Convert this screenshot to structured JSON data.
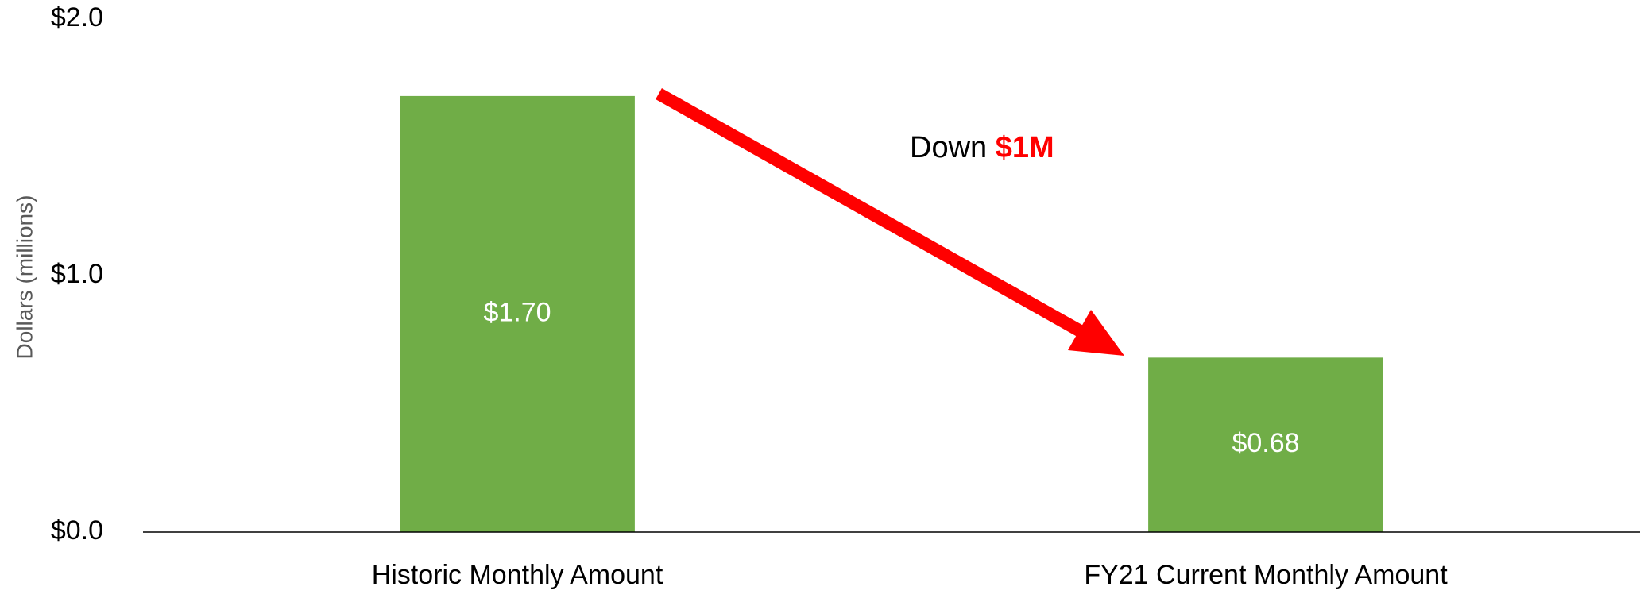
{
  "chart_data": {
    "type": "bar",
    "y_label": "Dollars (millions)",
    "categories": [
      "Historic Monthly Amount",
      "FY21 Current Monthly Amount"
    ],
    "values": [
      1.7,
      0.68
    ],
    "value_labels": [
      "$1.70",
      "$0.68"
    ],
    "color": "#70ad47",
    "ylim": [
      0,
      2
    ],
    "yticks": [
      {
        "value": 0,
        "label": "$0.0"
      },
      {
        "value": 1,
        "label": "$1.0"
      },
      {
        "value": 2,
        "label": "$2.0"
      }
    ],
    "grid": false,
    "annotation": {
      "text": "Down",
      "highlight": "$1M"
    }
  }
}
